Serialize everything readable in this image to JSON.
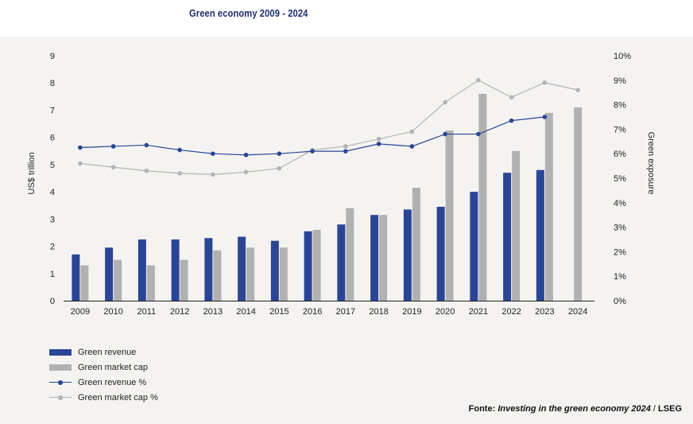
{
  "title": "Green economy 2009 - 2024",
  "source": {
    "label": "Fonte:",
    "publication": "Investing in the green economy 2024",
    "separator": " / ",
    "org": "LSEG"
  },
  "colors": {
    "green_revenue": "#2b4596",
    "green_market_cap": "#b1b1b1",
    "green_revenue_pct": "#2b4596",
    "green_market_cap_pct": "#b3b3b3"
  },
  "chart_data": {
    "type": "bar",
    "categories": [
      "2009",
      "2010",
      "2011",
      "2012",
      "2013",
      "2014",
      "2015",
      "2016",
      "2017",
      "2018",
      "2019",
      "2020",
      "2021",
      "2022",
      "2023",
      "2024"
    ],
    "ylabel": "US$ trillion",
    "y2label": "Green exposure",
    "ylim": [
      0,
      9
    ],
    "y2lim": [
      0,
      10
    ],
    "yticks": [
      "0",
      "1",
      "2",
      "3",
      "4",
      "5",
      "6",
      "7",
      "8",
      "9"
    ],
    "y2ticks": [
      "0%",
      "1%",
      "2%",
      "3%",
      "4%",
      "5%",
      "6%",
      "7%",
      "8%",
      "9%",
      "10%"
    ],
    "grid": false,
    "legend_position": "bottom-left",
    "series": [
      {
        "name": "Green revenue",
        "type": "bar",
        "axis": "left",
        "values": [
          1.7,
          1.95,
          2.25,
          2.25,
          2.3,
          2.35,
          2.2,
          2.55,
          2.8,
          3.15,
          3.35,
          3.45,
          4.0,
          4.7,
          4.8,
          null
        ]
      },
      {
        "name": "Green market cap",
        "type": "bar",
        "axis": "left",
        "values": [
          1.3,
          1.5,
          1.3,
          1.5,
          1.85,
          1.95,
          1.95,
          2.6,
          3.4,
          3.15,
          4.15,
          6.25,
          7.6,
          5.5,
          6.9,
          7.1
        ]
      },
      {
        "name": "Green revenue %",
        "type": "line",
        "axis": "right",
        "values": [
          6.25,
          6.3,
          6.35,
          6.15,
          6.0,
          5.95,
          6.0,
          6.1,
          6.1,
          6.4,
          6.3,
          6.8,
          6.8,
          7.35,
          7.5,
          null
        ]
      },
      {
        "name": "Green market cap %",
        "type": "line",
        "axis": "right",
        "values": [
          5.6,
          5.45,
          5.3,
          5.2,
          5.15,
          5.25,
          5.4,
          6.15,
          6.3,
          6.6,
          6.9,
          8.1,
          9.0,
          8.3,
          8.9,
          8.6
        ]
      }
    ]
  }
}
